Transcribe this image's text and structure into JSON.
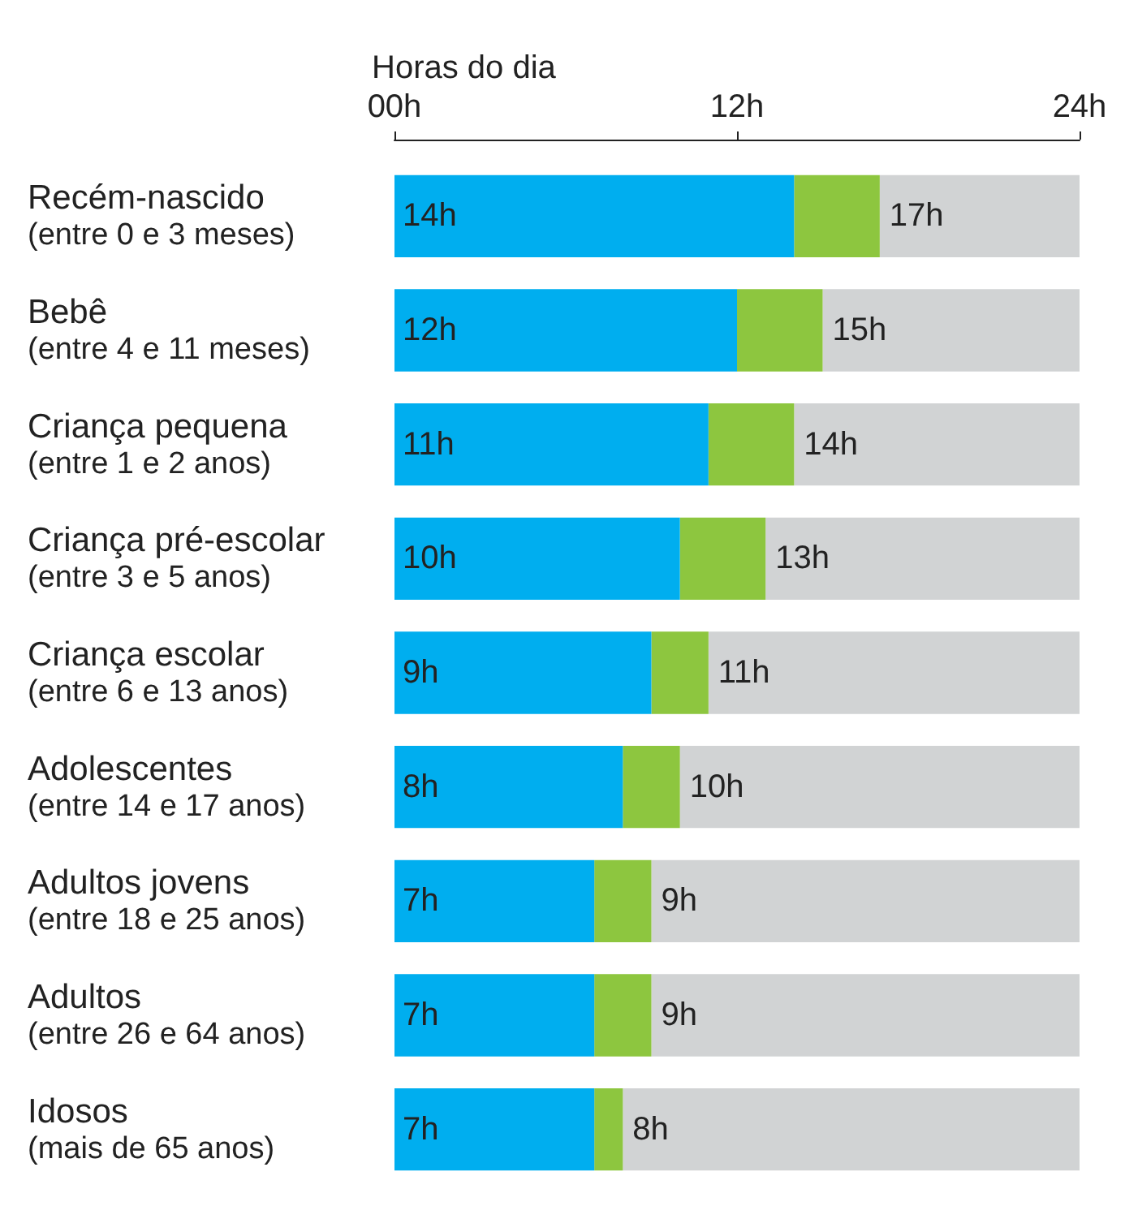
{
  "chart_data": {
    "type": "bar",
    "orientation": "horizontal",
    "stacked": true,
    "xlabel": "Horas do dia",
    "categories": [
      "Recém-nascido\n(entre 0 e 3 meses)",
      "Bebê\n(entre 4 e 11 meses)",
      "Criança pequena\n(entre 1 e 2 anos)",
      "Criança pré-escolar\n(entre 3 e 5 anos)",
      "Criança escolar\n(entre 6 e 13 anos)",
      "Adolescentes\n(entre 14 e 17 anos)",
      "Adultos jovens\n(entre 18 e 25 anos)",
      "Adultos\n(entre 26 e 64 anos)",
      "Idosos\n(mais de 65 anos)"
    ],
    "series": [
      {
        "color": "#00aeef",
        "values": [
          14,
          12,
          11,
          10,
          9,
          8,
          7,
          7,
          7
        ],
        "value_labels": [
          "14h",
          "12h",
          "11h",
          "10h",
          "9h",
          "8h",
          "7h",
          "7h",
          "7h"
        ]
      },
      {
        "color": "#8dc63f",
        "values": [
          3,
          3,
          3,
          3,
          2,
          2,
          2,
          2,
          1
        ]
      },
      {
        "color": "#d1d3d4",
        "values": [
          7,
          9,
          10,
          11,
          13,
          14,
          15,
          15,
          16
        ]
      }
    ],
    "annotations": [
      {
        "text": "17h",
        "x": 17,
        "y": "Recém-nascido\n(entre 0 e 3 meses)"
      },
      {
        "text": "15h",
        "x": 15,
        "y": "Bebê\n(entre 4 e 11 meses)"
      },
      {
        "text": "14h",
        "x": 14,
        "y": "Criança pequena\n(entre 1 e 2 anos)"
      },
      {
        "text": "13h",
        "x": 13,
        "y": "Criança pré-escolar\n(entre 3 e 5 anos)"
      },
      {
        "text": "11h",
        "x": 11,
        "y": "Criança escolar\n(entre 6 e 13 anos)"
      },
      {
        "text": "10h",
        "x": 10,
        "y": "Adolescentes\n(entre 14 e 17 anos)"
      },
      {
        "text": "9h",
        "x": 9,
        "y": "Adultos jovens\n(entre 18 e 25 anos)"
      },
      {
        "text": "9h",
        "x": 9,
        "y": "Adultos\n(entre 26 e 64 anos)"
      },
      {
        "text": "8h",
        "x": 8,
        "y": "Idosos\n(mais de 65 anos)"
      }
    ],
    "xlim": [
      0,
      24
    ],
    "xticks": [
      {
        "value": 0,
        "label": "00h"
      },
      {
        "value": 12,
        "label": "12h"
      },
      {
        "value": 24,
        "label": "24h"
      }
    ],
    "grid": false
  }
}
